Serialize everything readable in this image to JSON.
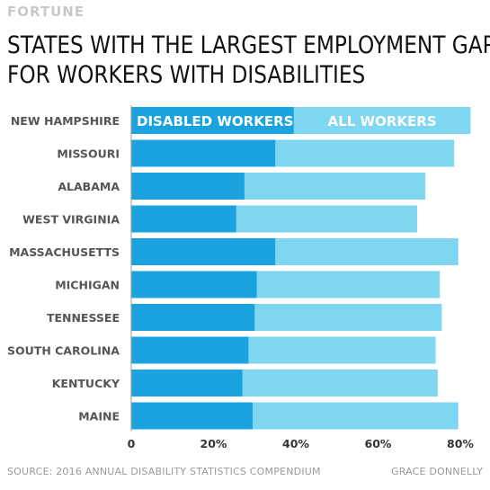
{
  "brand": "FORTUNE",
  "title_line1": "STATES WITH THE LARGEST EMPLOYMENT GAPS",
  "title_line2": "FOR WORKERS WITH DISABILITIES",
  "source": "SOURCE: 2016 ANNUAL DISABILITY STATISTICS COMPENDIUM",
  "credit": "GRACE DONNELLY",
  "colors": {
    "disabled": "#1aa3df",
    "all": "#7fd6f0",
    "label": "#555555",
    "axis": "#333333",
    "bar_text": "#ffffff"
  },
  "chart_data": {
    "type": "bar",
    "orientation": "horizontal",
    "overlay": true,
    "categories": [
      "NEW HAMPSHIRE",
      "MISSOURI",
      "ALABAMA",
      "WEST VIRGINIA",
      "MASSACHUSETTS",
      "MICHIGAN",
      "TENNESSEE",
      "SOUTH CAROLINA",
      "KENTUCKY",
      "MAINE"
    ],
    "series": [
      {
        "name": "ALL WORKERS",
        "values": [
          82.5,
          78.5,
          71.5,
          69.5,
          79.5,
          75,
          75.5,
          74,
          74.5,
          79.5
        ]
      },
      {
        "name": "DISABLED WORKERS",
        "values": [
          39.5,
          35,
          27.5,
          25.5,
          35,
          30.5,
          30,
          28.5,
          27,
          29.5
        ]
      }
    ],
    "xticks": [
      "0",
      "20%",
      "40%",
      "60%",
      "80%"
    ],
    "xtick_values": [
      0,
      20,
      40,
      60,
      80
    ],
    "xlim": [
      0,
      80
    ],
    "legend": "inside-first-bar",
    "grid": false
  }
}
